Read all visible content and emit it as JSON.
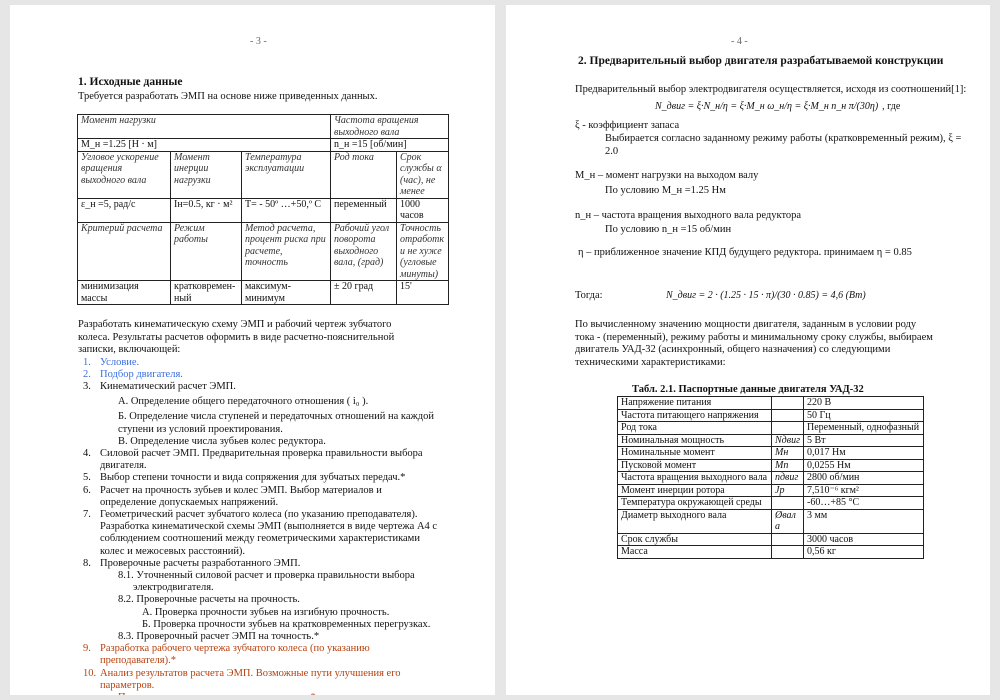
{
  "page1": {
    "page_number": "- 3 -",
    "heading": "1. Исходные данные",
    "intro": "Требуется разработать ЭМП на основе ниже приведенных данных.",
    "table": {
      "r1": [
        "Момент нагрузки",
        "Частота вращения выходного вала"
      ],
      "r2": [
        "M_н =1.25 [Н · м]",
        "n_н =15 [об/мин]"
      ],
      "r3": [
        "Угловое ускорение вращения выходного вала",
        "Момент инерции нагрузки",
        "Температура эксплуатации",
        "Род тока",
        "Срок службы α (час), не менее"
      ],
      "r4": [
        "ε_н =5, рад/с",
        "Iн=0.5, кг · м²",
        "T= - 50º …+50,º C",
        "переменный",
        "1000 часов"
      ],
      "r5": [
        "Критерий расчета",
        "Режим работы",
        "Метод расчета, процент риска при расчете, точность",
        "Рабочий угол поворота выходного вала, (град)",
        "Точность отработки не хуже (угловые минуты)"
      ],
      "r6": [
        "минимизация массы",
        "кратковремен-ный",
        "максимум-минимум",
        "± 20 град",
        "15'"
      ]
    },
    "task_text": "Разработать кинематическую схему ЭМП и рабочий чертеж зубчатого колеса. Результаты расчетов оформить в виде расчетно-пояснительной записки, включающей:",
    "items": [
      {
        "n": "1.",
        "t": "Условие."
      },
      {
        "n": "2.",
        "t": "Подбор двигателя."
      },
      {
        "n": "3.",
        "t": "Кинематический расчет ЭМП."
      },
      {
        "n": "",
        "t": "А. Определение общего передаточного отношения ( i₀ )."
      },
      {
        "n": "",
        "t": "Б. Определение числа ступеней и передаточных отношений на каждой ступени из условий проектирования."
      },
      {
        "n": "",
        "t": "В. Определение числа зубьев колес редуктора."
      },
      {
        "n": "4.",
        "t": "Силовой расчет ЭМП. Предварительная проверка правильности выбора двигателя."
      },
      {
        "n": "5.",
        "t": "Выбор степени точности и вида сопряжения для зубчатых передач.*"
      },
      {
        "n": "6.",
        "t": "Расчет на прочность зубьев и колес ЭМП. Выбор материалов и определение допускаемых напряжений."
      },
      {
        "n": "7.",
        "t": "Геометрический расчет зубчатого колеса (по указанию преподавателя). Разработка кинематической схемы ЭМП (выполняется в виде чертежа А4 с соблюдением соотношений между геометрическими характеристиками колес и межосевых расстояний)."
      },
      {
        "n": "8.",
        "t": "Проверочные расчеты разработанного ЭМП."
      },
      {
        "n": "",
        "t": "8.1. Уточненный силовой расчет и проверка правильности выбора электродвигателя."
      },
      {
        "n": "",
        "t": "8.2.  Проверочные расчеты на прочность."
      },
      {
        "n": "",
        "t": "А. Проверка прочности зубьев на изгибную прочность."
      },
      {
        "n": "",
        "t": "Б. Проверка прочности зубьев на кратковременных перегрузках."
      },
      {
        "n": "",
        "t": "8.3. Проверочный расчет ЭМП на точность.*"
      },
      {
        "n": "9.",
        "t": "Разработка рабочего чертежа зубчатого колеса (по указанию преподавателя).*"
      },
      {
        "n": "10.",
        "t": "Анализ результатов расчета ЭМП. Возможные пути улучшения его параметров."
      },
      {
        "n": "",
        "t": "Примечание: пункты помеченные знаком «*» выполнять не следует."
      }
    ],
    "colors": {
      "blue_items": "#3a6ee0",
      "red_items": "#b8400c"
    }
  },
  "page2": {
    "page_number": "- 4 -",
    "heading": "2.  Предварительный выбор двигателя разрабатываемой конструкции",
    "intro": "Предварительный выбор электродвигателя осуществляется, исходя из соотношений[1]:",
    "formula": "N_двиг = ξ·N_н/η = ξ·M_н ω_н/η = ξ·M_н n_н π/(30η)",
    "formula_suffix": ", где",
    "xi_def": "ξ - коэффициент запаса",
    "xi_text": "Выбирается согласно заданному режиму работы (кратковременный режим), ξ = 2.0",
    "m_def": "M_н – момент нагрузки на выходом валу",
    "m_val": "По условию  M_н =1.25 Нм",
    "n_def": "n_н  – частота вращения выходного вала редуктора",
    "n_val": "По условию  n_н =15 об/мин",
    "eta_def": "η – приближенное значение КПД будущего редуктора. принимаем  η = 0.85",
    "then": "Тогда:",
    "calc": "N_двиг = 2 · (1.25 · 15 · π)/(30 · 0.85) = 4,6 (Вт)",
    "conclusion": "По вычисленному значению мощности двигателя, заданным в условии роду тока - (переменный), режиму работы и минимальному сроку службы, выбираем двигатель УАД-32 (асинхронный, общего назначения) со следующими техническими характеристиками:",
    "table_title": "Табл. 2.1. Паспортные данные двигателя УАД-32",
    "table_rows": [
      [
        "Напряжение питания",
        "",
        "220 В"
      ],
      [
        "Частота питающего напряжения",
        "",
        "50 Гц"
      ],
      [
        "Род тока",
        "",
        "Переменный, однофазный"
      ],
      [
        "Номинальная мощность",
        "Nдвиг",
        "5 Вт"
      ],
      [
        "Номинальные момент",
        "Mн",
        "0,017 Нм"
      ],
      [
        "Пусковой момент",
        "Mп",
        "0,0255 Нм"
      ],
      [
        "Частота вращения выходного вала",
        "nдвиг",
        "2800 об/мин"
      ],
      [
        "Момент инерции ротора",
        "Jр",
        "7,510⁻⁶ кгм²"
      ],
      [
        "Температура окружающей среды",
        "",
        "-60…+85 °C"
      ],
      [
        "Диаметр выходного вала",
        "Øвала",
        "3 мм"
      ],
      [
        "Срок службы",
        "",
        "3000 часов"
      ],
      [
        "Масса",
        "",
        "0,56 кг"
      ]
    ]
  }
}
